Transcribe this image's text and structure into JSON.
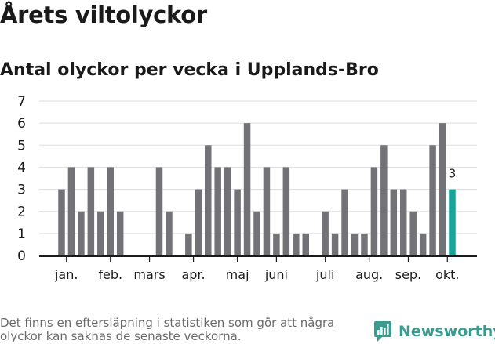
{
  "title": "Årets viltolyckor",
  "subtitle": "Antal olyckor per vecka i Upplands-Bro",
  "footnote": "Det finns en eftersläpning i statistiken som gör att några olyckor kan saknas de senaste veckorna.",
  "brand": {
    "name": "Newsworthy",
    "icon": "newsworthy-logo-icon"
  },
  "colors": {
    "bar": "#737377",
    "highlight": "#1aa398",
    "grid": "#dedede",
    "brand": "#3a9b8e"
  },
  "chart_data": {
    "type": "bar",
    "title": "Antal olyckor per vecka i Upplands-Bro",
    "xlabel": "",
    "ylabel": "",
    "ylim": [
      0,
      7
    ],
    "yticks": [
      0,
      1,
      2,
      3,
      4,
      5,
      6,
      7
    ],
    "grid": true,
    "weeks": [
      1,
      2,
      3,
      4,
      5,
      6,
      7,
      8,
      9,
      10,
      11,
      12,
      13,
      14,
      15,
      16,
      17,
      18,
      19,
      20,
      21,
      22,
      23,
      24,
      25,
      26,
      27,
      28,
      29,
      30,
      31,
      32,
      33,
      34,
      35,
      36,
      37,
      38,
      39,
      40,
      41
    ],
    "values": [
      3,
      4,
      2,
      4,
      2,
      4,
      2,
      0,
      0,
      0,
      4,
      2,
      0,
      1,
      3,
      5,
      4,
      4,
      3,
      6,
      2,
      4,
      1,
      4,
      1,
      1,
      0,
      2,
      1,
      3,
      1,
      1,
      4,
      5,
      3,
      3,
      2,
      1,
      5,
      6,
      3
    ],
    "highlight_index": 40,
    "annotation": {
      "index": 40,
      "text": "3"
    },
    "month_labels": [
      {
        "label": "jan.",
        "week": 1.5
      },
      {
        "label": "feb.",
        "week": 6
      },
      {
        "label": "mars",
        "week": 10
      },
      {
        "label": "apr.",
        "week": 14.5
      },
      {
        "label": "maj",
        "week": 19
      },
      {
        "label": "juni",
        "week": 23
      },
      {
        "label": "juli",
        "week": 28
      },
      {
        "label": "aug.",
        "week": 32.5
      },
      {
        "label": "sep.",
        "week": 36.5
      },
      {
        "label": "okt.",
        "week": 40.5
      }
    ]
  }
}
